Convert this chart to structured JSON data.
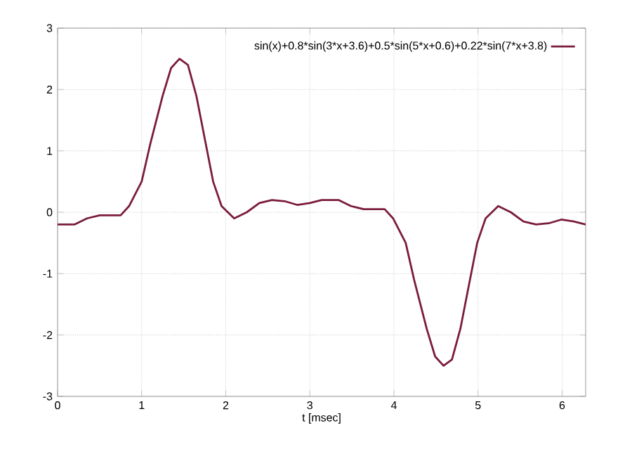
{
  "chart_data": {
    "type": "line",
    "xlabel": "t [msec]",
    "series": [
      {
        "name": "sin(x)+0.8*sin(3*x+3.6)+0.5*sin(5*x+0.6)+0.22*sin(7*x+3.8)",
        "color": "#7b1c3c",
        "x": [
          0,
          0.2,
          0.35,
          0.5,
          0.75,
          0.85,
          1.0,
          1.1,
          1.25,
          1.35,
          1.45,
          1.55,
          1.65,
          1.75,
          1.85,
          1.95,
          2.1,
          2.25,
          2.4,
          2.55,
          2.7,
          2.85,
          3.0,
          3.14,
          3.34,
          3.49,
          3.64,
          3.89,
          3.99,
          4.14,
          4.24,
          4.39,
          4.49,
          4.59,
          4.69,
          4.79,
          4.89,
          4.99,
          5.09,
          5.24,
          5.39,
          5.54,
          5.69,
          5.84,
          5.99,
          6.14,
          6.28
        ],
        "values": [
          -0.2,
          -0.2,
          -0.1,
          -0.05,
          -0.05,
          0.1,
          0.5,
          1.1,
          1.9,
          2.35,
          2.5,
          2.4,
          1.9,
          1.2,
          0.5,
          0.1,
          -0.1,
          0.0,
          0.15,
          0.2,
          0.18,
          0.12,
          0.15,
          0.2,
          0.2,
          0.1,
          0.05,
          0.05,
          -0.1,
          -0.5,
          -1.1,
          -1.9,
          -2.35,
          -2.5,
          -2.4,
          -1.9,
          -1.2,
          -0.5,
          -0.1,
          0.1,
          0.0,
          -0.15,
          -0.2,
          -0.18,
          -0.12,
          -0.15,
          -0.2
        ]
      }
    ],
    "xlim": [
      0,
      6.28
    ],
    "ylim": [
      -3,
      3
    ],
    "xticks": [
      0,
      1,
      2,
      3,
      4,
      5,
      6
    ],
    "yticks": [
      -3,
      -2,
      -1,
      0,
      1,
      2,
      3
    ],
    "grid": true,
    "legend": "top right",
    "line_style": "solid",
    "marker": "none"
  }
}
